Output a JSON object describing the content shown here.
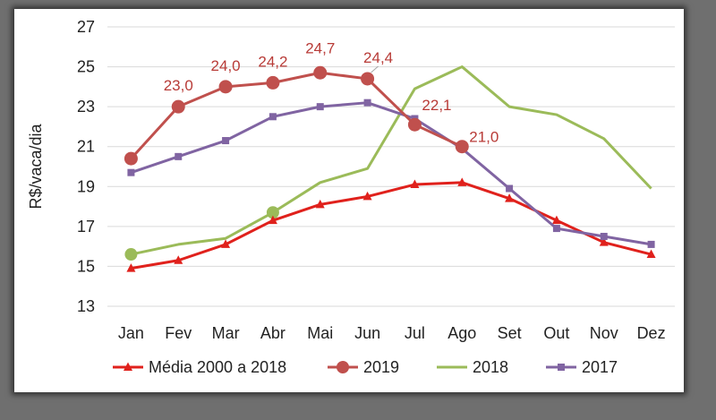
{
  "chart_data": {
    "type": "line",
    "title": "",
    "xlabel": "",
    "ylabel": "R$/vaca/dia",
    "ylim": [
      13,
      27
    ],
    "yticks": [
      13,
      15,
      17,
      19,
      21,
      23,
      25,
      27
    ],
    "grid": true,
    "legend_position": "bottom",
    "categories": [
      "Jan",
      "Fev",
      "Mar",
      "Abr",
      "Mai",
      "Jun",
      "Jul",
      "Ago",
      "Set",
      "Out",
      "Nov",
      "Dez"
    ],
    "series": [
      {
        "name": "Média 2000 a 2018",
        "color": "#e0211c",
        "marker": "triangle",
        "values": [
          14.9,
          15.3,
          16.1,
          17.3,
          18.1,
          18.5,
          19.1,
          19.2,
          18.4,
          17.3,
          16.2,
          15.6
        ]
      },
      {
        "name": "2019",
        "color": "#c0504d",
        "marker": "circle",
        "values": [
          20.4,
          23.0,
          24.0,
          24.2,
          24.7,
          24.4,
          22.1,
          21.0,
          null,
          null,
          null,
          null
        ],
        "labels": [
          "",
          "23,0",
          "24,0",
          "24,2",
          "24,7",
          "24,4",
          "22,1",
          "21,0",
          "",
          "",
          "",
          ""
        ]
      },
      {
        "name": "2018",
        "color": "#9bbb59",
        "marker": "none",
        "values": [
          15.6,
          16.1,
          16.4,
          17.7,
          19.2,
          19.9,
          23.9,
          25.0,
          23.0,
          22.6,
          21.4,
          18.9
        ]
      },
      {
        "name": "2017",
        "color": "#8064a2",
        "marker": "square",
        "values": [
          19.7,
          20.5,
          21.3,
          22.5,
          23.0,
          23.2,
          22.4,
          20.9,
          18.9,
          16.9,
          16.5,
          16.1
        ]
      }
    ]
  }
}
